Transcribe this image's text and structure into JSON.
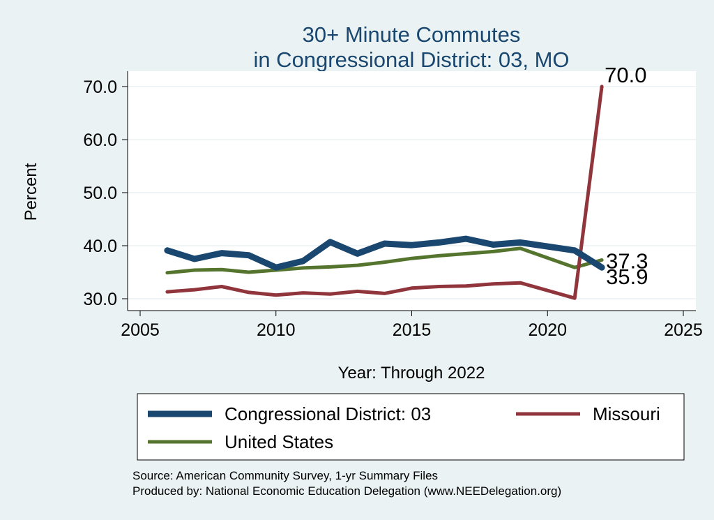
{
  "chart_data": {
    "type": "line",
    "title": [
      "30+ Minute Commutes",
      "in Congressional District:  03, MO"
    ],
    "xlabel": "Year: Through 2022",
    "ylabel": "Percent",
    "xlim": [
      2005,
      2025
    ],
    "ylim": [
      30,
      70
    ],
    "xticks": [
      2005,
      2010,
      2015,
      2020,
      2025
    ],
    "yticks": [
      30,
      40,
      50,
      60,
      70
    ],
    "ytick_labels": [
      "30.0",
      "40.0",
      "50.0",
      "60.0",
      "70.0"
    ],
    "grid": true,
    "legend_position": "bottom",
    "series": [
      {
        "name": "Congressional District:  03",
        "color": "#1a476f",
        "x": [
          2006,
          2007,
          2008,
          2009,
          2010,
          2011,
          2012,
          2013,
          2014,
          2015,
          2016,
          2017,
          2018,
          2019,
          2021,
          2022
        ],
        "values": [
          39.1,
          37.5,
          38.6,
          38.2,
          35.9,
          37.1,
          40.7,
          38.5,
          40.4,
          40.1,
          40.6,
          41.3,
          40.2,
          40.6,
          39.1,
          35.9
        ],
        "end_label": "35.9"
      },
      {
        "name": "Missouri",
        "color": "#90353b",
        "x": [
          2006,
          2007,
          2008,
          2009,
          2010,
          2011,
          2012,
          2013,
          2014,
          2015,
          2016,
          2017,
          2018,
          2019,
          2021,
          2022
        ],
        "values": [
          31.3,
          31.7,
          32.3,
          31.2,
          30.7,
          31.1,
          30.9,
          31.4,
          31.0,
          32.0,
          32.3,
          32.4,
          32.8,
          33.0,
          30.1,
          70.0
        ],
        "end_label": "70.0"
      },
      {
        "name": "United States",
        "color": "#55752f",
        "x": [
          2006,
          2007,
          2008,
          2009,
          2010,
          2011,
          2012,
          2013,
          2014,
          2015,
          2016,
          2017,
          2018,
          2019,
          2021,
          2022
        ],
        "values": [
          34.9,
          35.4,
          35.5,
          35.0,
          35.4,
          35.8,
          36.0,
          36.3,
          36.9,
          37.6,
          38.1,
          38.5,
          38.9,
          39.5,
          35.9,
          37.3
        ],
        "end_label": "37.3"
      }
    ],
    "legend_order": [
      0,
      1,
      2
    ],
    "notes": [
      "Source: American Community Survey, 1-yr Summary Files",
      "Produced by: National Economic Education Delegation (www.NEEDelegation.org)"
    ]
  }
}
